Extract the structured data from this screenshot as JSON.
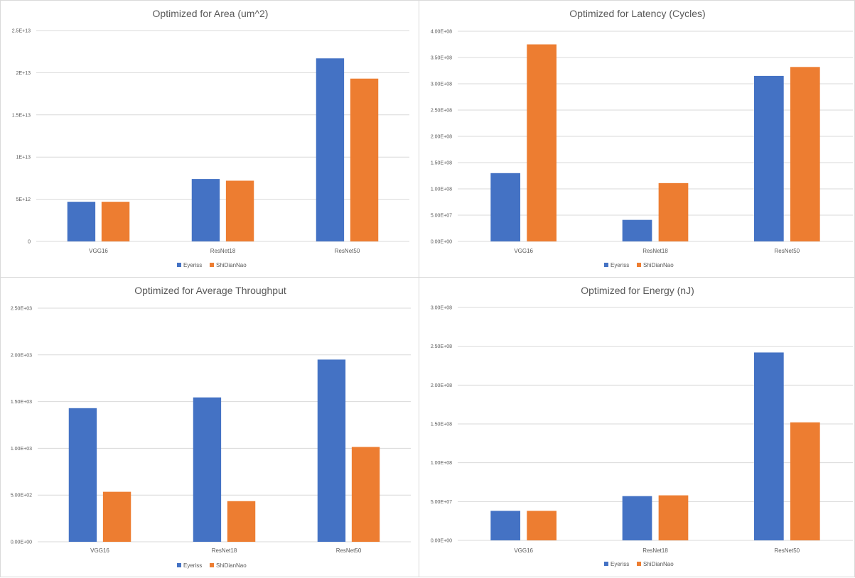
{
  "colors": {
    "series1": "#4472C4",
    "series2": "#ED7D31",
    "grid": "#d9d9d9",
    "text": "#595959"
  },
  "chart_data": [
    {
      "type": "bar",
      "title": "Optimized for Area (um^2)",
      "categories": [
        "VGG16",
        "ResNet18",
        "ResNet50"
      ],
      "series": [
        {
          "name": "Eyeriss",
          "values": [
            4700000000000.0,
            7400000000000.0,
            21700000000000.0
          ]
        },
        {
          "name": "ShiDianNao",
          "values": [
            4700000000000.0,
            7200000000000.0,
            19300000000000.0
          ]
        }
      ],
      "ylim": [
        0,
        25000000000000.0
      ],
      "yticks": [
        0,
        5000000000000.0,
        10000000000000.0,
        15000000000000.0,
        20000000000000.0,
        25000000000000.0
      ],
      "ytick_labels": [
        "0",
        "5E+12",
        "1E+13",
        "1.5E+13",
        "2E+13",
        "2.5E+13"
      ],
      "legend": "bottom"
    },
    {
      "type": "bar",
      "title": "Optimized for Latency (Cycles)",
      "categories": [
        "VGG16",
        "ResNet18",
        "ResNet50"
      ],
      "series": [
        {
          "name": "Eyeriss",
          "values": [
            130000000.0,
            41000000.0,
            315000000.0
          ]
        },
        {
          "name": "ShiDianNao",
          "values": [
            375000000.0,
            111000000.0,
            332000000.0
          ]
        }
      ],
      "ylim": [
        0,
        400000000.0
      ],
      "yticks": [
        0,
        50000000.0,
        100000000.0,
        150000000.0,
        200000000.0,
        250000000.0,
        300000000.0,
        350000000.0,
        400000000.0
      ],
      "ytick_labels": [
        "0.00E+00",
        "5.00E+07",
        "1.00E+08",
        "1.50E+08",
        "2.00E+08",
        "2.50E+08",
        "3.00E+08",
        "3.50E+08",
        "4.00E+08"
      ],
      "legend": "bottom"
    },
    {
      "type": "bar",
      "title": "Optimized for Average Throughput",
      "categories": [
        "VGG16",
        "ResNet18",
        "ResNet50"
      ],
      "series": [
        {
          "name": "Eyeriss",
          "values": [
            1430,
            1545,
            1950
          ]
        },
        {
          "name": "ShiDianNao",
          "values": [
            535,
            435,
            1015
          ]
        }
      ],
      "ylim": [
        0,
        2500
      ],
      "yticks": [
        0,
        500,
        1000,
        1500,
        2000,
        2500
      ],
      "ytick_labels": [
        "0.00E+00",
        "5.00E+02",
        "1.00E+03",
        "1.50E+03",
        "2.00E+03",
        "2.50E+03"
      ],
      "legend": "bottom"
    },
    {
      "type": "bar",
      "title": "Optimized for Energy (nJ)",
      "categories": [
        "VGG16",
        "ResNet18",
        "ResNet50"
      ],
      "series": [
        {
          "name": "Eyeriss",
          "values": [
            38000000.0,
            57000000.0,
            242000000.0
          ]
        },
        {
          "name": "ShiDianNao",
          "values": [
            38000000.0,
            58000000.0,
            152000000.0
          ]
        }
      ],
      "ylim": [
        0,
        300000000.0
      ],
      "yticks": [
        0,
        50000000.0,
        100000000.0,
        150000000.0,
        200000000.0,
        250000000.0,
        300000000.0
      ],
      "ytick_labels": [
        "0.00E+00",
        "5.00E+07",
        "1.00E+08",
        "1.50E+08",
        "2.00E+08",
        "2.50E+08",
        "3.00E+08"
      ],
      "legend": "bottom"
    }
  ]
}
